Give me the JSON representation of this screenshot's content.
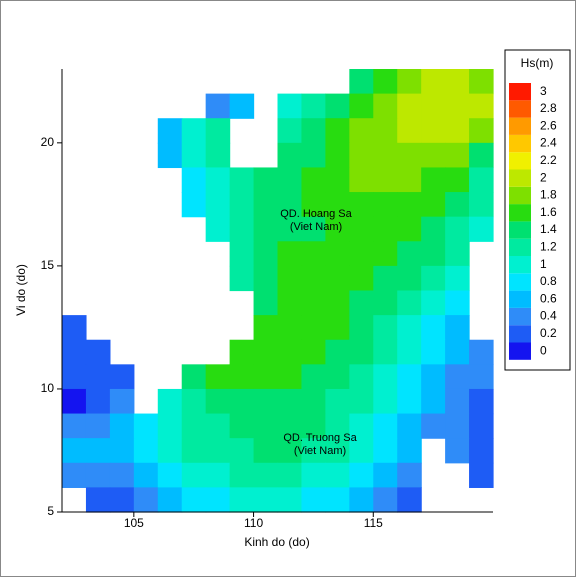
{
  "chart_data": {
    "type": "heatmap",
    "xlabel": "Kinh do (do)",
    "ylabel": "Vi do (do)",
    "xlim": [
      102,
      120
    ],
    "ylim": [
      5,
      23
    ],
    "xticks": [
      105,
      110,
      115
    ],
    "yticks": [
      5,
      10,
      15,
      20
    ],
    "legend_title": "Hs(m)",
    "levels": [
      0,
      0.2,
      0.4,
      0.6,
      0.8,
      1,
      1.2,
      1.4,
      1.6,
      1.8,
      2,
      2.2,
      2.4,
      2.6,
      2.8,
      3
    ],
    "colors": [
      "#1414f0",
      "#1e5cf5",
      "#2f8cf8",
      "#00bcff",
      "#00e4ff",
      "#00f0d0",
      "#00eaa0",
      "#00e070",
      "#28dc10",
      "#7ee000",
      "#bde800",
      "#f0f000",
      "#ffc800",
      "#ff9a00",
      "#ff5a00",
      "#ff1a00"
    ],
    "annotations": [
      "QD. Hoang Sa",
      "(Viet Nam)",
      "QD. Truong Sa",
      "(Viet Nam)"
    ],
    "x": [
      102.5,
      103.5,
      104.5,
      105.5,
      106.5,
      107.5,
      108.5,
      109.5,
      110.5,
      111.5,
      112.5,
      113.5,
      114.5,
      115.5,
      116.5,
      117.5,
      118.5,
      119.5
    ],
    "y": [
      22.5,
      21.5,
      20.5,
      19.5,
      18.5,
      17.5,
      16.5,
      15.5,
      14.5,
      13.5,
      12.5,
      11.5,
      10.5,
      9.5,
      8.5,
      7.5,
      6.5,
      5.5
    ],
    "z": [
      [
        null,
        null,
        null,
        null,
        null,
        null,
        null,
        null,
        null,
        null,
        null,
        null,
        1.4,
        1.7,
        1.9,
        2.0,
        2.0,
        1.9
      ],
      [
        null,
        null,
        null,
        null,
        null,
        null,
        0.4,
        0.6,
        null,
        1.0,
        1.3,
        1.5,
        1.7,
        1.9,
        2.0,
        2.1,
        2.1,
        2.0
      ],
      [
        null,
        null,
        null,
        null,
        0.6,
        1.0,
        1.2,
        null,
        null,
        1.2,
        1.4,
        1.6,
        1.8,
        1.9,
        2.0,
        2.1,
        2.0,
        1.9
      ],
      [
        null,
        null,
        null,
        null,
        0.7,
        1.1,
        1.3,
        null,
        null,
        1.4,
        1.5,
        1.7,
        1.8,
        1.9,
        1.9,
        1.9,
        1.8,
        1.5
      ],
      [
        null,
        null,
        null,
        null,
        null,
        0.9,
        1.1,
        1.3,
        1.4,
        1.5,
        1.6,
        1.7,
        1.8,
        1.8,
        1.8,
        1.7,
        1.6,
        1.3
      ],
      [
        null,
        null,
        null,
        null,
        null,
        0.8,
        1.1,
        1.3,
        1.4,
        1.5,
        1.6,
        1.6,
        1.7,
        1.7,
        1.7,
        1.6,
        1.5,
        1.3
      ],
      [
        null,
        null,
        null,
        null,
        null,
        null,
        1.0,
        1.3,
        1.4,
        1.5,
        1.5,
        1.6,
        1.6,
        1.6,
        1.6,
        1.5,
        1.3,
        1.0
      ],
      [
        null,
        null,
        null,
        null,
        null,
        null,
        null,
        1.3,
        1.5,
        1.6,
        1.6,
        1.6,
        1.6,
        1.6,
        1.5,
        1.4,
        1.2,
        null
      ],
      [
        null,
        null,
        null,
        null,
        null,
        null,
        null,
        1.2,
        1.5,
        1.6,
        1.6,
        1.6,
        1.6,
        1.5,
        1.4,
        1.2,
        1.0,
        null
      ],
      [
        null,
        null,
        null,
        null,
        null,
        null,
        null,
        null,
        1.5,
        1.6,
        1.6,
        1.6,
        1.5,
        1.4,
        1.2,
        1.0,
        0.8,
        null
      ],
      [
        0.2,
        null,
        null,
        null,
        null,
        null,
        null,
        null,
        1.6,
        1.7,
        1.6,
        1.6,
        1.5,
        1.3,
        1.1,
        0.9,
        0.7,
        null
      ],
      [
        0.2,
        0.2,
        null,
        null,
        null,
        null,
        null,
        1.6,
        1.7,
        1.7,
        1.6,
        1.5,
        1.4,
        1.2,
        1.0,
        0.8,
        0.6,
        0.5
      ],
      [
        0.2,
        0.3,
        0.3,
        null,
        null,
        1.4,
        1.6,
        1.7,
        1.6,
        1.6,
        1.5,
        1.4,
        1.3,
        1.1,
        0.9,
        0.7,
        0.5,
        0.4
      ],
      [
        0.1,
        0.3,
        0.4,
        null,
        1.0,
        1.2,
        1.4,
        1.5,
        1.5,
        1.5,
        1.4,
        1.3,
        1.2,
        1.0,
        0.8,
        0.6,
        0.4,
        0.3
      ],
      [
        0.4,
        0.5,
        0.6,
        0.9,
        1.1,
        1.2,
        1.3,
        1.4,
        1.4,
        1.4,
        1.4,
        1.3,
        1.1,
        0.9,
        0.7,
        0.5,
        0.4,
        0.3
      ],
      [
        0.6,
        0.6,
        0.6,
        0.9,
        1.1,
        1.2,
        1.3,
        1.3,
        1.4,
        1.4,
        1.3,
        1.2,
        1.0,
        0.8,
        0.6,
        null,
        0.4,
        0.3
      ],
      [
        0.5,
        0.5,
        0.4,
        0.6,
        0.9,
        1.0,
        1.1,
        1.2,
        1.2,
        1.2,
        1.1,
        1.0,
        0.8,
        0.6,
        0.4,
        null,
        null,
        0.3
      ],
      [
        null,
        0.3,
        0.3,
        0.4,
        0.7,
        0.8,
        0.9,
        1.0,
        1.0,
        1.0,
        0.9,
        0.8,
        0.6,
        0.4,
        0.3,
        null,
        null,
        null
      ]
    ]
  }
}
